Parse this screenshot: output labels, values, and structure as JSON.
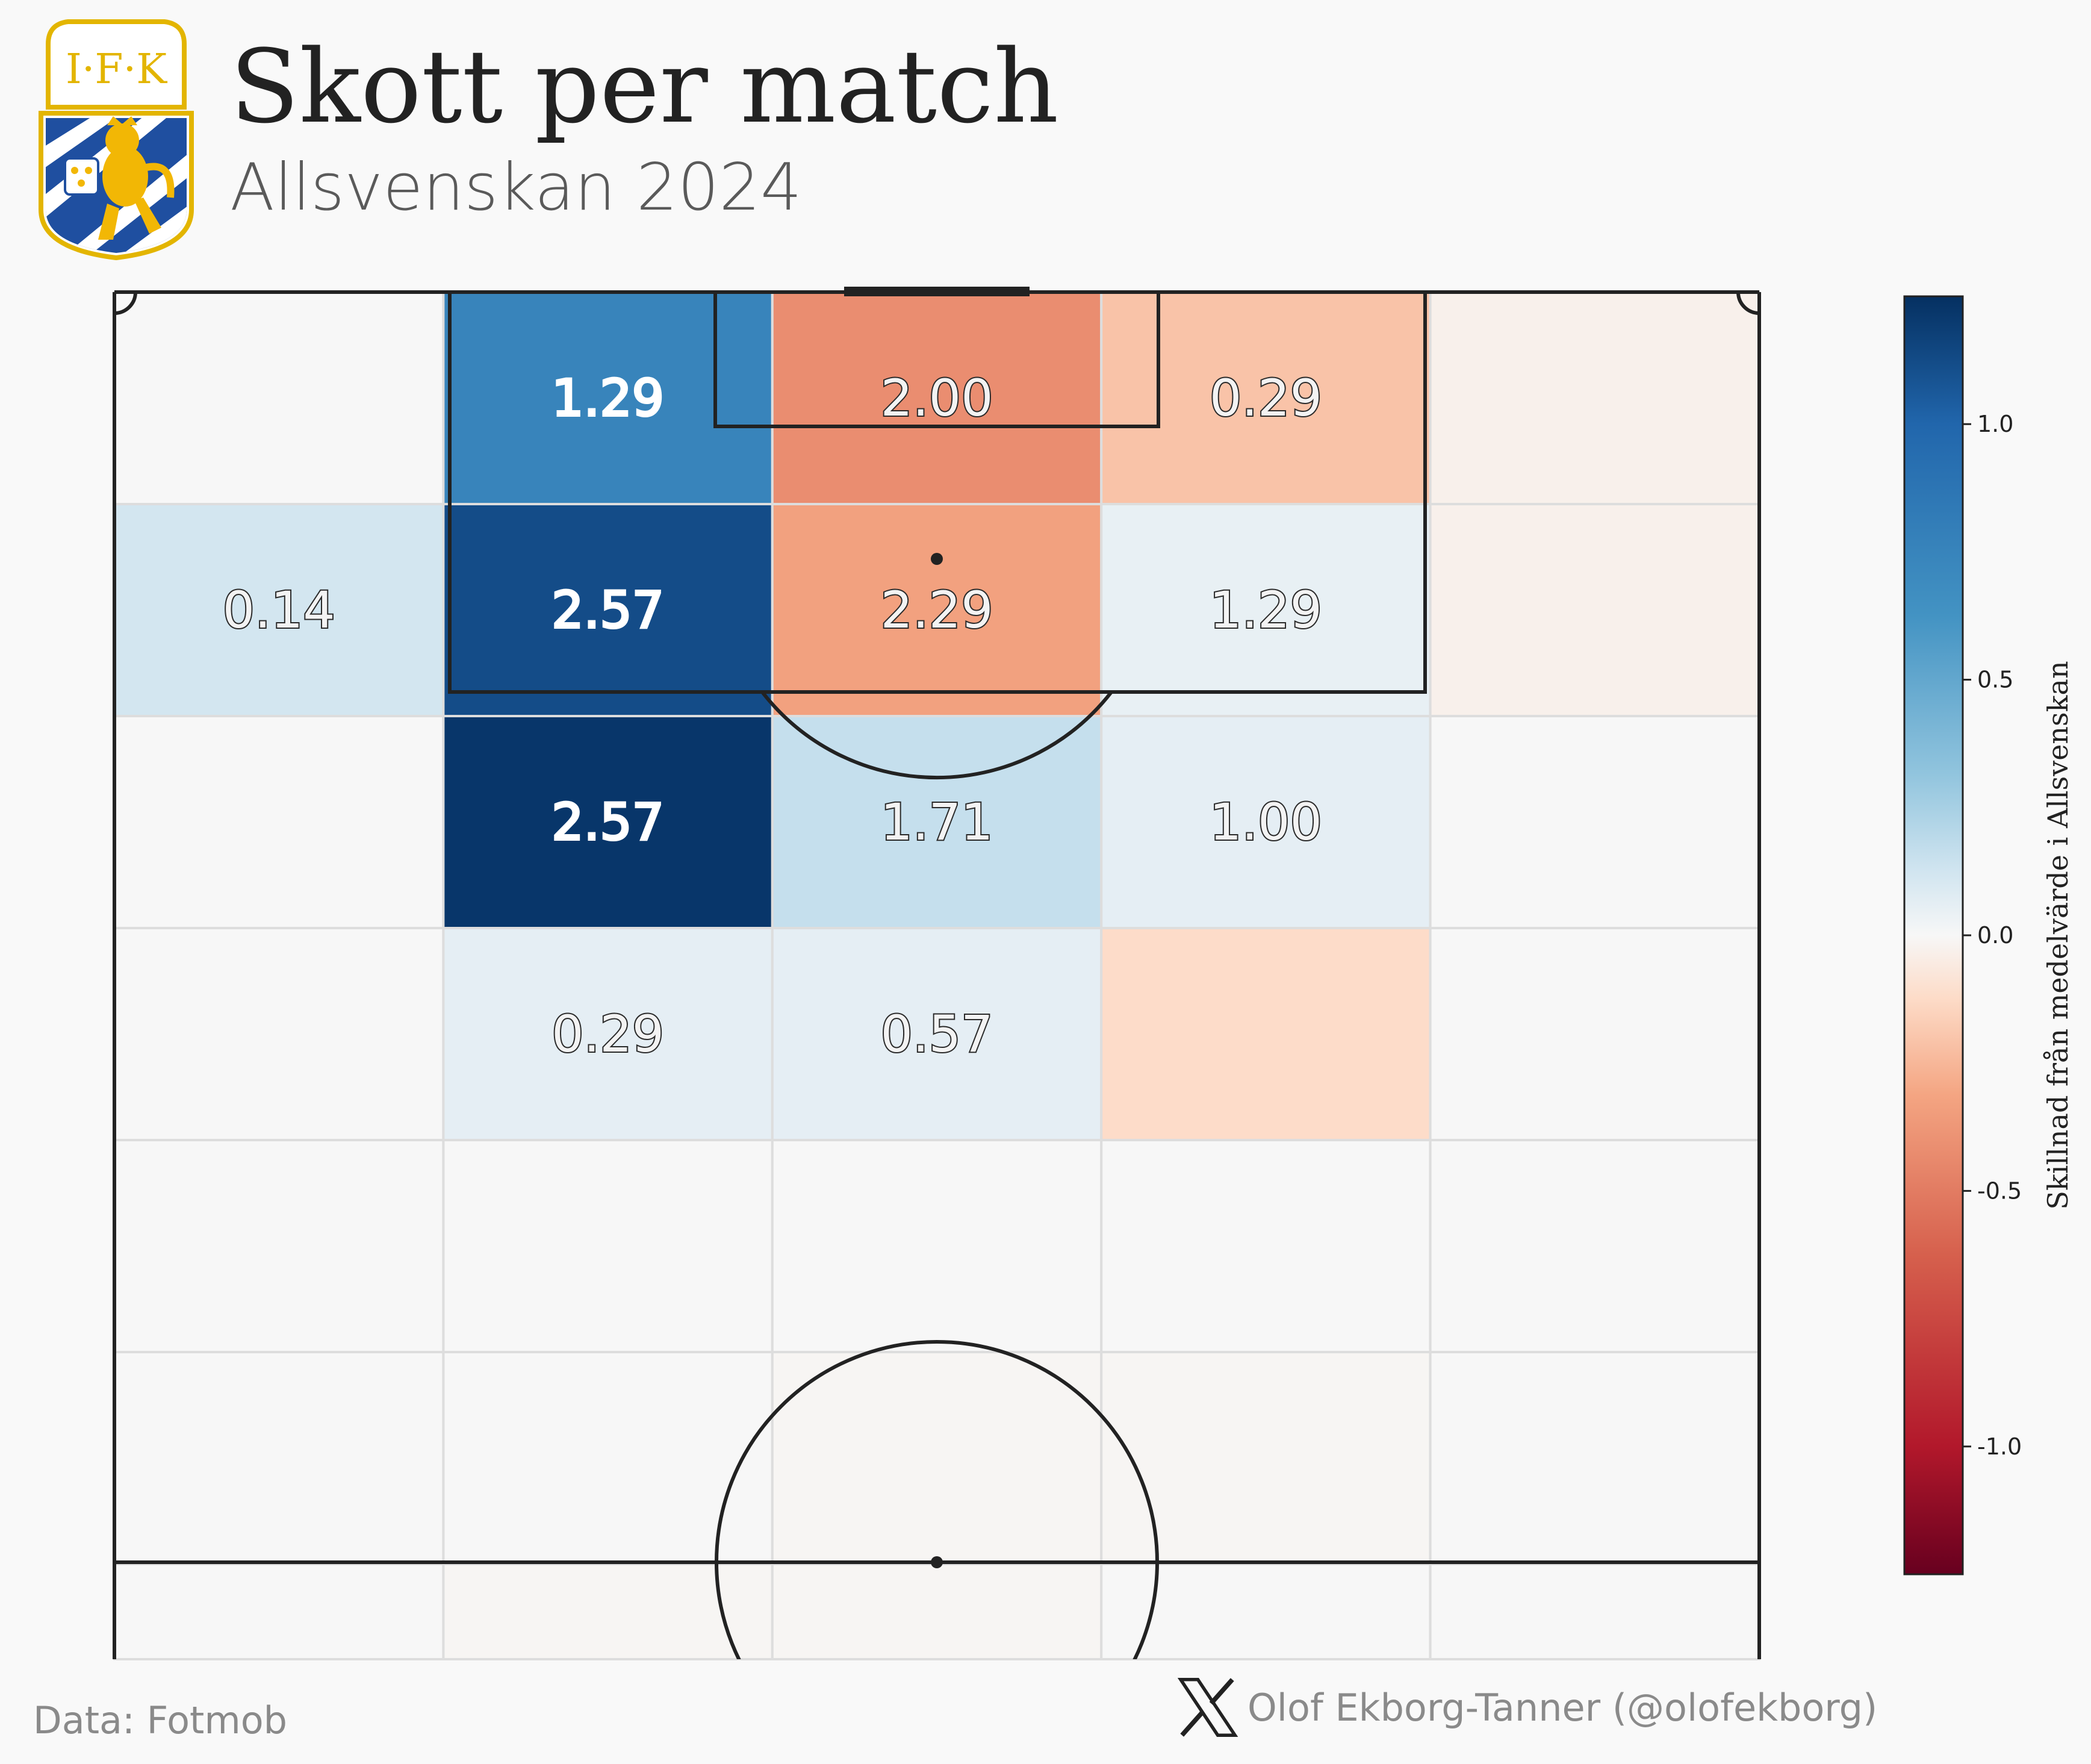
{
  "header": {
    "title": "Skott per match",
    "subtitle": "Allsvenskan 2024",
    "logo_text": "I·F·K"
  },
  "footer": {
    "source": "Data: Fotmob",
    "author": "Olof Ekborg-Tanner (@olofekborg)",
    "author_icon": "x-logo-icon"
  },
  "colors": {
    "background": "#f9f9f9",
    "lines": "#222222",
    "grid": "#dddddd",
    "neutral": "#f7f7f7"
  },
  "chart_data": {
    "type": "heatmap",
    "title": "Skott per match",
    "subtitle": "Allsvenskan 2024",
    "colormap": "RdBu",
    "rows": 7,
    "cols": 5,
    "cells": [
      {
        "row": 0,
        "col": 0,
        "diff": 0.0,
        "label": ""
      },
      {
        "row": 0,
        "col": 1,
        "diff": 0.75,
        "label": "1.29"
      },
      {
        "row": 0,
        "col": 2,
        "diff": -0.42,
        "label": "2.00"
      },
      {
        "row": 0,
        "col": 3,
        "diff": -0.21,
        "label": "0.29"
      },
      {
        "row": 0,
        "col": 4,
        "diff": -0.03,
        "label": ""
      },
      {
        "row": 1,
        "col": 0,
        "diff": 0.12,
        "label": "0.14"
      },
      {
        "row": 1,
        "col": 1,
        "diff": 1.12,
        "label": "2.57"
      },
      {
        "row": 1,
        "col": 2,
        "diff": -0.33,
        "label": "2.29"
      },
      {
        "row": 1,
        "col": 3,
        "diff": 0.05,
        "label": "1.29"
      },
      {
        "row": 1,
        "col": 4,
        "diff": -0.03,
        "label": ""
      },
      {
        "row": 2,
        "col": 0,
        "diff": 0.0,
        "label": ""
      },
      {
        "row": 2,
        "col": 1,
        "diff": 1.22,
        "label": "2.57"
      },
      {
        "row": 2,
        "col": 2,
        "diff": 0.16,
        "label": "1.71"
      },
      {
        "row": 2,
        "col": 3,
        "diff": 0.06,
        "label": "1.00"
      },
      {
        "row": 2,
        "col": 4,
        "diff": 0.0,
        "label": ""
      },
      {
        "row": 3,
        "col": 0,
        "diff": 0.0,
        "label": ""
      },
      {
        "row": 3,
        "col": 1,
        "diff": 0.06,
        "label": "0.29"
      },
      {
        "row": 3,
        "col": 2,
        "diff": 0.06,
        "label": "0.57"
      },
      {
        "row": 3,
        "col": 3,
        "diff": -0.12,
        "label": ""
      },
      {
        "row": 3,
        "col": 4,
        "diff": 0.0,
        "label": ""
      },
      {
        "row": 4,
        "col": 0,
        "diff": 0.0,
        "label": ""
      },
      {
        "row": 4,
        "col": 1,
        "diff": 0.0,
        "label": ""
      },
      {
        "row": 4,
        "col": 2,
        "diff": 0.0,
        "label": ""
      },
      {
        "row": 4,
        "col": 3,
        "diff": 0.0,
        "label": ""
      },
      {
        "row": 4,
        "col": 4,
        "diff": 0.0,
        "label": ""
      },
      {
        "row": 5,
        "col": 0,
        "diff": 0.0,
        "label": ""
      },
      {
        "row": 5,
        "col": 1,
        "diff": 0.0,
        "label": ""
      },
      {
        "row": 5,
        "col": 2,
        "diff": -0.01,
        "label": ""
      },
      {
        "row": 5,
        "col": 3,
        "diff": -0.01,
        "label": ""
      },
      {
        "row": 5,
        "col": 4,
        "diff": 0.0,
        "label": ""
      },
      {
        "row": 6,
        "col": 0,
        "diff": 0.0,
        "label": ""
      },
      {
        "row": 6,
        "col": 1,
        "diff": -0.01,
        "label": ""
      },
      {
        "row": 6,
        "col": 2,
        "diff": -0.01,
        "label": ""
      },
      {
        "row": 6,
        "col": 3,
        "diff": 0.0,
        "label": ""
      },
      {
        "row": 6,
        "col": 4,
        "diff": 0.0,
        "label": ""
      }
    ],
    "colorbar": {
      "label": "Skillnad från medelvärde i Allsvenskan",
      "range": [
        -1.25,
        1.25
      ],
      "ticks": [
        1.0,
        0.5,
        0.0,
        -0.5,
        -1.0
      ],
      "tick_labels": [
        "1.0",
        "0.5",
        "0.0",
        "-0.5",
        "-1.0"
      ]
    }
  }
}
